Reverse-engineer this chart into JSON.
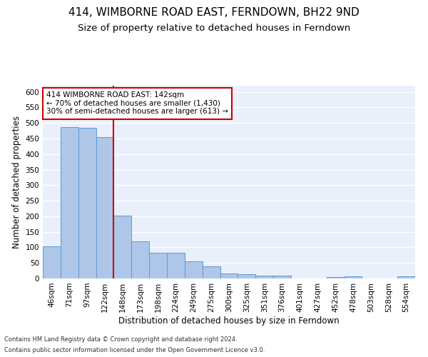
{
  "title": "414, WIMBORNE ROAD EAST, FERNDOWN, BH22 9ND",
  "subtitle": "Size of property relative to detached houses in Ferndown",
  "xlabel": "Distribution of detached houses by size in Ferndown",
  "ylabel": "Number of detached properties",
  "categories": [
    "46sqm",
    "71sqm",
    "97sqm",
    "122sqm",
    "148sqm",
    "173sqm",
    "198sqm",
    "224sqm",
    "249sqm",
    "275sqm",
    "300sqm",
    "325sqm",
    "351sqm",
    "376sqm",
    "401sqm",
    "427sqm",
    "452sqm",
    "478sqm",
    "503sqm",
    "528sqm",
    "554sqm"
  ],
  "values": [
    104,
    487,
    485,
    454,
    201,
    120,
    82,
    82,
    56,
    40,
    15,
    14,
    10,
    10,
    1,
    1,
    5,
    6,
    0,
    0,
    6
  ],
  "bar_color": "#aec6e8",
  "bar_edge_color": "#5b9bd5",
  "annotation_text": "414 WIMBORNE ROAD EAST: 142sqm\n← 70% of detached houses are smaller (1,430)\n30% of semi-detached houses are larger (613) →",
  "annotation_box_color": "#ffffff",
  "annotation_box_edge": "#cc0000",
  "vline_color": "#cc0000",
  "footer_line1": "Contains HM Land Registry data © Crown copyright and database right 2024.",
  "footer_line2": "Contains public sector information licensed under the Open Government Licence v3.0.",
  "ylim": [
    0,
    620
  ],
  "yticks": [
    0,
    50,
    100,
    150,
    200,
    250,
    300,
    350,
    400,
    450,
    500,
    550,
    600
  ],
  "background_color": "#eaf0fb",
  "grid_color": "#ffffff",
  "title_fontsize": 11,
  "subtitle_fontsize": 9.5,
  "axis_label_fontsize": 8.5,
  "tick_fontsize": 7.5,
  "annotation_fontsize": 7.5,
  "footer_fontsize": 6.0
}
